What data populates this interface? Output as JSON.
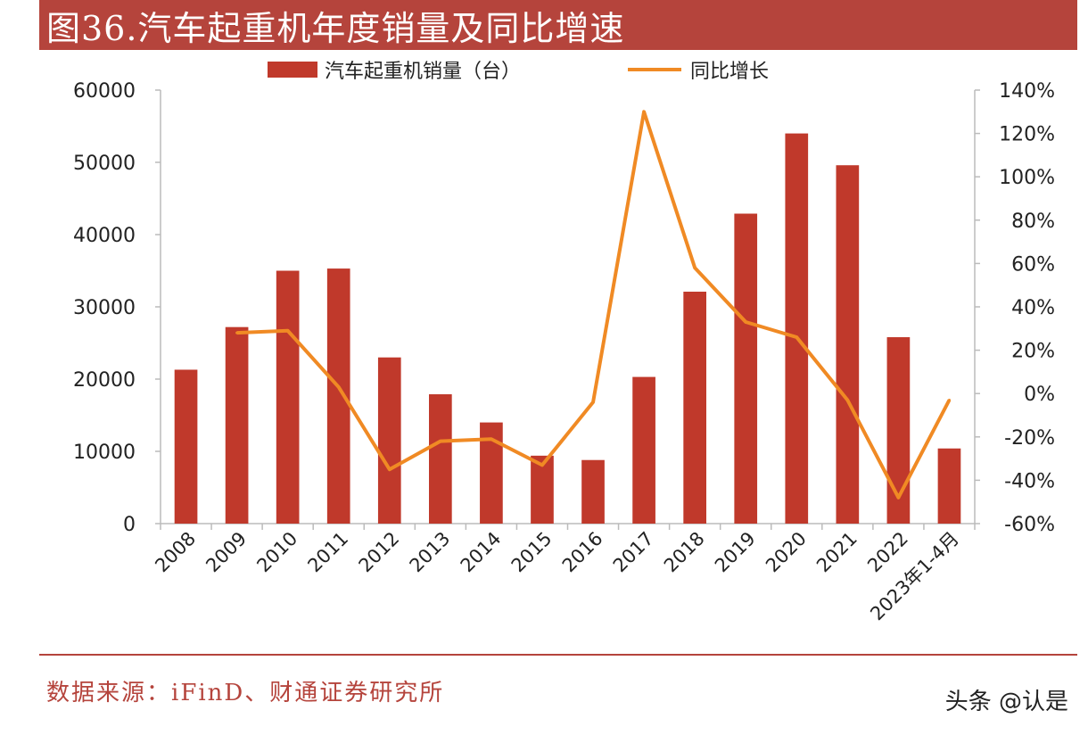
{
  "header": {
    "title": "图36.汽车起重机年度销量及同比增速"
  },
  "colors": {
    "accent": "#b5443c",
    "bar": "#c0392b",
    "line": "#f08a24"
  },
  "footer": {
    "source": "数据来源：iFinD、财通证券研究所",
    "watermark": "头条 @认是"
  },
  "chart_data": {
    "type": "bar",
    "title": "图36.汽车起重机年度销量及同比增速",
    "categories": [
      "2008",
      "2009",
      "2010",
      "2011",
      "2012",
      "2013",
      "2014",
      "2015",
      "2016",
      "2017",
      "2018",
      "2019",
      "2020",
      "2021",
      "2022",
      "2023年1-4月"
    ],
    "series": [
      {
        "name": "汽车起重机销量（台）",
        "type": "bar",
        "axis": "left",
        "values": [
          21300,
          27200,
          35000,
          35300,
          23000,
          17900,
          14000,
          9400,
          8800,
          20300,
          32100,
          42900,
          54000,
          49600,
          25800,
          10400
        ]
      },
      {
        "name": "同比增长",
        "type": "line",
        "axis": "right",
        "unit": "%",
        "values": [
          null,
          28,
          29,
          3,
          -35,
          -22,
          -21,
          -33,
          -4,
          130,
          58,
          33,
          26,
          -3,
          -48,
          -3
        ]
      }
    ],
    "y_left": {
      "range": [
        0,
        60000
      ],
      "ticks": [
        "0",
        "10000",
        "20000",
        "30000",
        "40000",
        "50000",
        "60000"
      ]
    },
    "y_right": {
      "range": [
        -60,
        140
      ],
      "ticks": [
        "-60%",
        "-40%",
        "-20%",
        "0%",
        "20%",
        "40%",
        "60%",
        "80%",
        "100%",
        "120%",
        "140%"
      ]
    },
    "legend": "top",
    "grid": false
  }
}
